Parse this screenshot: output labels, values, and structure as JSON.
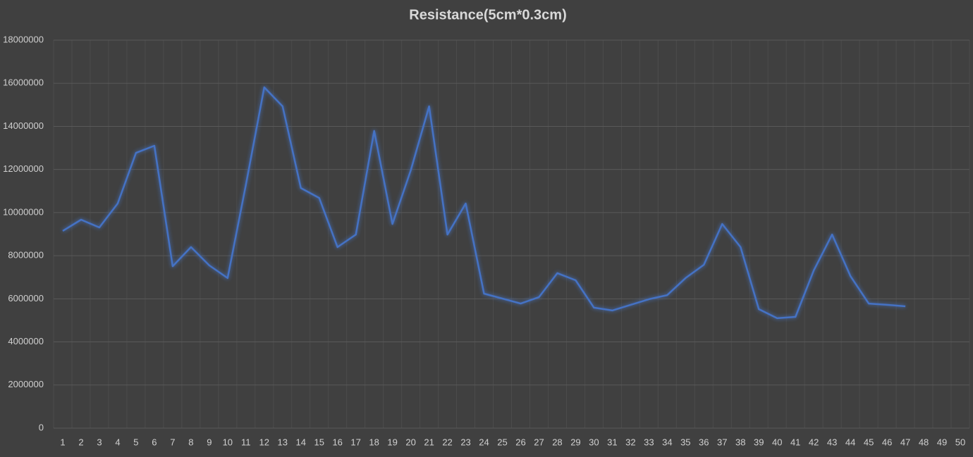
{
  "chart_data": {
    "type": "line",
    "title": "Resistance(5cm*0.3cm)",
    "categories": [
      "1",
      "2",
      "3",
      "4",
      "5",
      "6",
      "7",
      "8",
      "9",
      "10",
      "11",
      "12",
      "13",
      "14",
      "15",
      "16",
      "17",
      "18",
      "19",
      "20",
      "21",
      "22",
      "23",
      "24",
      "25",
      "26",
      "27",
      "28",
      "29",
      "30",
      "31",
      "32",
      "33",
      "34",
      "35",
      "36",
      "37",
      "38",
      "39",
      "40",
      "41",
      "42",
      "43",
      "44",
      "45",
      "46",
      "47",
      "48",
      "49",
      "50"
    ],
    "series": [
      {
        "name": "Resistance",
        "color": "#4472c4",
        "values": [
          9150000,
          9670000,
          9310000,
          10420000,
          12770000,
          13100000,
          7510000,
          8400000,
          7550000,
          6960000,
          11300000,
          15810000,
          14930000,
          11140000,
          10680000,
          8400000,
          8980000,
          13790000,
          9470000,
          11960000,
          14930000,
          8980000,
          10420000,
          6240000,
          6010000,
          5780000,
          6080000,
          7190000,
          6860000,
          5590000,
          5460000,
          5720000,
          5980000,
          6170000,
          6960000,
          7580000,
          9470000,
          8400000,
          5520000,
          5100000,
          5160000,
          7320000,
          8980000,
          7060000,
          5780000,
          5720000,
          5650000,
          null,
          null,
          null
        ]
      }
    ],
    "ylim": [
      0,
      18000000
    ],
    "yticks": [
      0,
      2000000,
      4000000,
      6000000,
      8000000,
      10000000,
      12000000,
      14000000,
      16000000,
      18000000
    ],
    "grid": true
  }
}
